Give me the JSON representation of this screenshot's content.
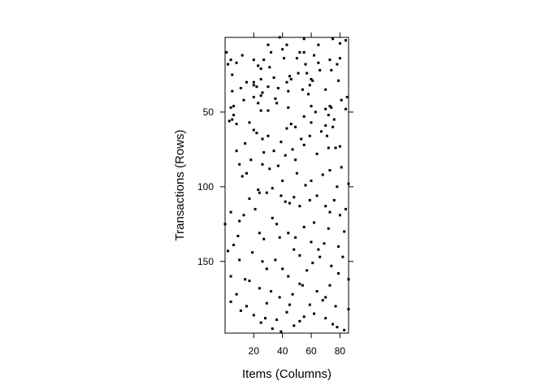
{
  "chart_data": {
    "type": "scatter",
    "plot_style": "binary matrix image (transactions x items), black square marks",
    "title": "",
    "xlabel": "Items (Columns)",
    "ylabel": "Transactions (Rows)",
    "xlim": [
      0,
      86
    ],
    "ylim": [
      198,
      0
    ],
    "y_reversed": true,
    "x_ticks_bottom": [
      20,
      40,
      60,
      80
    ],
    "y_ticks_left": [
      50,
      100,
      150
    ],
    "grid": false,
    "legend": "none",
    "mark_color": "#000000",
    "points": [
      [
        38,
        0
      ],
      [
        55,
        1
      ],
      [
        75,
        1
      ],
      [
        84,
        2
      ],
      [
        80,
        4
      ],
      [
        65,
        5
      ],
      [
        30,
        5
      ],
      [
        43,
        5
      ],
      [
        40,
        8
      ],
      [
        52,
        10
      ],
      [
        32,
        10
      ],
      [
        55,
        10
      ],
      [
        62,
        12
      ],
      [
        80,
        14
      ],
      [
        41,
        14
      ],
      [
        50,
        14
      ],
      [
        20,
        15
      ],
      [
        73,
        15
      ],
      [
        27,
        15
      ],
      [
        4,
        15
      ],
      [
        8,
        17
      ],
      [
        65,
        17
      ],
      [
        56,
        18
      ],
      [
        78,
        18
      ],
      [
        2,
        18
      ],
      [
        23,
        19
      ],
      [
        25,
        21
      ],
      [
        74,
        22
      ],
      [
        51,
        24
      ],
      [
        57,
        24
      ],
      [
        5,
        25
      ],
      [
        34,
        27
      ],
      [
        25,
        28
      ],
      [
        46,
        28
      ],
      [
        20,
        32
      ],
      [
        43,
        30
      ],
      [
        60,
        28
      ],
      [
        61,
        29
      ],
      [
        15,
        30
      ],
      [
        79,
        29
      ],
      [
        20,
        30
      ],
      [
        59,
        32
      ],
      [
        22,
        33
      ],
      [
        11,
        34
      ],
      [
        30,
        33
      ],
      [
        37,
        34
      ],
      [
        5,
        36
      ],
      [
        54,
        35
      ],
      [
        26,
        37
      ],
      [
        44,
        36
      ],
      [
        58,
        38
      ],
      [
        25,
        39
      ],
      [
        20,
        40
      ],
      [
        35,
        41
      ],
      [
        13,
        42
      ],
      [
        85,
        40
      ],
      [
        81,
        42
      ],
      [
        23,
        44
      ],
      [
        4,
        47
      ],
      [
        6,
        46
      ],
      [
        73,
        46
      ],
      [
        44,
        47
      ],
      [
        60,
        46
      ],
      [
        70,
        48
      ],
      [
        74,
        47
      ],
      [
        84,
        48
      ],
      [
        25,
        49
      ],
      [
        30,
        49
      ],
      [
        6,
        52
      ],
      [
        72,
        52
      ],
      [
        55,
        53
      ],
      [
        76,
        55
      ],
      [
        3,
        56
      ],
      [
        5,
        55
      ],
      [
        60,
        57
      ],
      [
        46,
        58
      ],
      [
        43,
        61
      ],
      [
        8,
        58
      ],
      [
        49,
        60
      ],
      [
        70,
        59
      ],
      [
        75,
        60
      ],
      [
        20,
        62
      ],
      [
        22,
        64
      ],
      [
        30,
        66
      ],
      [
        71,
        66
      ],
      [
        59,
        66
      ],
      [
        53,
        68
      ],
      [
        39,
        70
      ],
      [
        14,
        71
      ],
      [
        55,
        72
      ],
      [
        80,
        73
      ],
      [
        72,
        74
      ],
      [
        77,
        74
      ],
      [
        8,
        76
      ],
      [
        34,
        76
      ],
      [
        27,
        77
      ],
      [
        42,
        79
      ],
      [
        49,
        82
      ],
      [
        18,
        82
      ],
      [
        26,
        85
      ],
      [
        37,
        86
      ],
      [
        81,
        87
      ],
      [
        73,
        89
      ],
      [
        15,
        91
      ],
      [
        50,
        91
      ],
      [
        12,
        93
      ],
      [
        40,
        96
      ],
      [
        60,
        96
      ],
      [
        86,
        98
      ],
      [
        78,
        100
      ],
      [
        33,
        101
      ],
      [
        24,
        104
      ],
      [
        29,
        104
      ],
      [
        39,
        106
      ],
      [
        64,
        106
      ],
      [
        48,
        107
      ],
      [
        17,
        108
      ],
      [
        59,
        109
      ],
      [
        76,
        109
      ],
      [
        45,
        111
      ],
      [
        52,
        113
      ],
      [
        70,
        113
      ],
      [
        21,
        115
      ],
      [
        73,
        117
      ],
      [
        4,
        117
      ],
      [
        80,
        119
      ],
      [
        33,
        121
      ],
      [
        10,
        123
      ],
      [
        62,
        124
      ],
      [
        0,
        125
      ],
      [
        55,
        127
      ],
      [
        83,
        130
      ],
      [
        24,
        131
      ],
      [
        44,
        131
      ],
      [
        9,
        133
      ],
      [
        38,
        134
      ],
      [
        27,
        135
      ],
      [
        60,
        137
      ],
      [
        69,
        138
      ],
      [
        6,
        139
      ],
      [
        79,
        140
      ],
      [
        48,
        142
      ],
      [
        65,
        142
      ],
      [
        19,
        144
      ],
      [
        52,
        146
      ],
      [
        82,
        147
      ],
      [
        35,
        149
      ],
      [
        10,
        149
      ],
      [
        61,
        151
      ],
      [
        74,
        153
      ],
      [
        29,
        155
      ],
      [
        57,
        156
      ],
      [
        4,
        160
      ],
      [
        44,
        160
      ],
      [
        86,
        162
      ],
      [
        17,
        163
      ],
      [
        52,
        165
      ],
      [
        73,
        166
      ],
      [
        24,
        168
      ],
      [
        64,
        170
      ],
      [
        8,
        172
      ],
      [
        47,
        172
      ],
      [
        38,
        174
      ],
      [
        68,
        176
      ],
      [
        4,
        177
      ],
      [
        29,
        178
      ],
      [
        59,
        179
      ],
      [
        77,
        180
      ],
      [
        15,
        180
      ],
      [
        86,
        182
      ],
      [
        43,
        184
      ],
      [
        20,
        186
      ],
      [
        55,
        187
      ],
      [
        70,
        188
      ],
      [
        36,
        189
      ],
      [
        25,
        191
      ],
      [
        48,
        193
      ],
      [
        78,
        194
      ],
      [
        33,
        195
      ],
      [
        83,
        196
      ],
      [
        1,
        10
      ],
      [
        12,
        12
      ],
      [
        31,
        20
      ],
      [
        66,
        22
      ],
      [
        45,
        26
      ],
      [
        70,
        35
      ],
      [
        36,
        44
      ],
      [
        63,
        50
      ],
      [
        17,
        57
      ],
      [
        67,
        63
      ],
      [
        26,
        68
      ],
      [
        47,
        75
      ],
      [
        64,
        78
      ],
      [
        10,
        85
      ],
      [
        31,
        88
      ],
      [
        68,
        92
      ],
      [
        56,
        99
      ],
      [
        23,
        102
      ],
      [
        42,
        110
      ],
      [
        84,
        115
      ],
      [
        13,
        119
      ],
      [
        36,
        125
      ],
      [
        72,
        128
      ],
      [
        49,
        134
      ],
      [
        2,
        143
      ],
      [
        66,
        147
      ],
      [
        26,
        150
      ],
      [
        40,
        155
      ],
      [
        79,
        158
      ],
      [
        14,
        162
      ],
      [
        54,
        166
      ],
      [
        32,
        170
      ],
      [
        70,
        174
      ],
      [
        45,
        179
      ],
      [
        11,
        183
      ],
      [
        62,
        185
      ],
      [
        28,
        188
      ],
      [
        52,
        190
      ],
      [
        75,
        192
      ],
      [
        39,
        197
      ]
    ]
  }
}
